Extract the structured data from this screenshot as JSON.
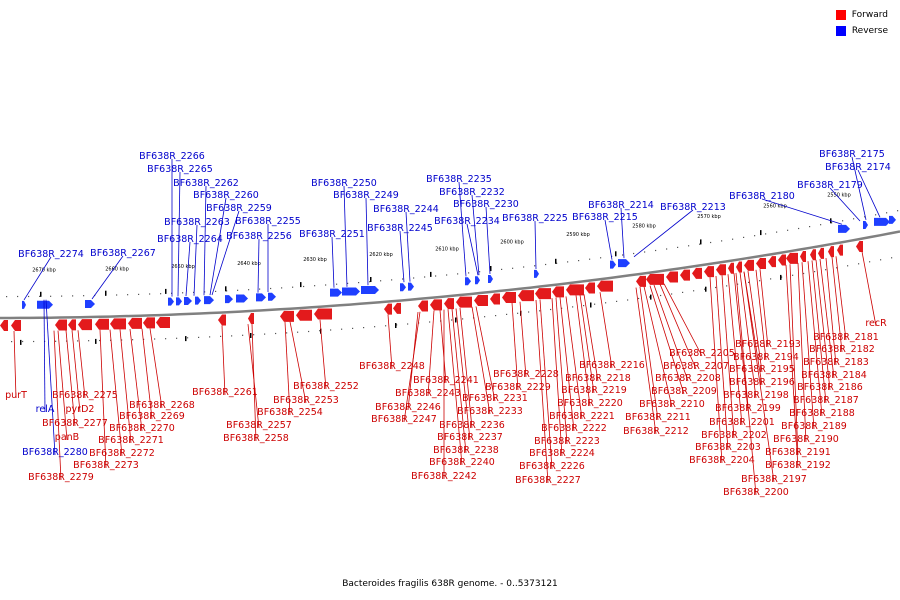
{
  "caption": "Bacteroides fragilis 638R genome. - 0..5373121",
  "legend": [
    {
      "label": "Forward",
      "color": "#ff0000"
    },
    {
      "label": "Reverse",
      "color": "#0000ff"
    }
  ],
  "colors": {
    "forward": "#e31a1c",
    "reverse": "#1f3fff",
    "backbone": "#808080",
    "label_forward": "#cc0000",
    "label_reverse": "#0000cc"
  },
  "ticks": [
    "2670 kbp",
    "2660 kbp",
    "2650 kbp",
    "2640 kbp",
    "2630 kbp",
    "2620 kbp",
    "2610 kbp",
    "2600 kbp",
    "2590 kbp",
    "2580 kbp",
    "2570 kbp",
    "2560 kbp",
    "2550 kbp"
  ],
  "reverse_labels": [
    "BF638R_2274",
    "BF638R_2267",
    "BF638R_2266",
    "BF638R_2265",
    "BF638R_2264",
    "BF638R_2263",
    "BF638R_2262",
    "BF638R_2260",
    "BF638R_2259",
    "BF638R_2256",
    "BF638R_2255",
    "BF638R_2251",
    "BF638R_2250",
    "BF638R_2249",
    "BF638R_2245",
    "BF638R_2244",
    "BF638R_2235",
    "BF638R_2234",
    "BF638R_2232",
    "BF638R_2230",
    "BF638R_2225",
    "BF638R_2215",
    "BF638R_2214",
    "BF638R_2213",
    "BF638R_2180",
    "BF638R_2179",
    "BF638R_2175",
    "BF638R_2174",
    "relA",
    "BF638R_2280"
  ],
  "forward_labels": [
    "purT",
    "pyrD2",
    "BF638R_2275",
    "BF638R_2277",
    "panB",
    "BF638R_2279",
    "BF638R_2268",
    "BF638R_2269",
    "BF638R_2270",
    "BF638R_2271",
    "BF638R_2272",
    "BF638R_2273",
    "BF638R_2261",
    "BF638R_2257",
    "BF638R_2258",
    "BF638R_2253",
    "BF638R_2254",
    "BF638R_2252",
    "BF638R_2248",
    "BF638R_2241",
    "BF638R_2243",
    "BF638R_2246",
    "BF638R_2247",
    "BF638R_2231",
    "BF638R_2233",
    "BF638R_2236",
    "BF638R_2237",
    "BF638R_2238",
    "BF638R_2240",
    "BF638R_2242",
    "BF638R_2228",
    "BF638R_2229",
    "BF638R_2218",
    "BF638R_2219",
    "BF638R_2220",
    "BF638R_2221",
    "BF638R_2222",
    "BF638R_2223",
    "BF638R_2224",
    "BF638R_2226",
    "BF638R_2227",
    "BF638R_2216",
    "BF638R_2205",
    "BF638R_2207",
    "BF638R_2208",
    "BF638R_2209",
    "BF638R_2210",
    "BF638R_2211",
    "BF638R_2212",
    "BF638R_2193",
    "BF638R_2194",
    "BF638R_2195",
    "BF638R_2196",
    "BF638R_2198",
    "BF638R_2199",
    "BF638R_2201",
    "BF638R_2202",
    "BF638R_2203",
    "BF638R_2204",
    "BF638R_2197",
    "BF638R_2200",
    "BF638R_2181",
    "BF638R_2182",
    "BF638R_2183",
    "BF638R_2184",
    "BF638R_2186",
    "BF638R_2187",
    "BF638R_2188",
    "BF638R_2189",
    "BF638R_2190",
    "BF638R_2191",
    "BF638R_2192",
    "recR"
  ]
}
